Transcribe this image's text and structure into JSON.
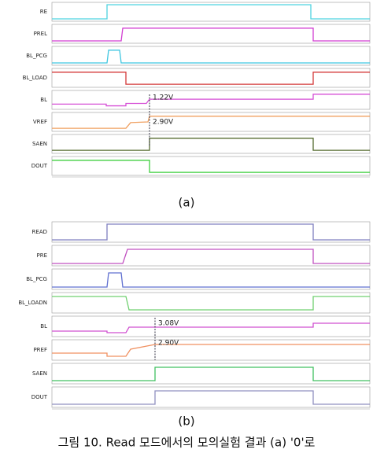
{
  "figure": {
    "panels": [
      {
        "label": "(a)",
        "signals": [
          "RE",
          "PREL",
          "BL_PCG",
          "BL_LOAD",
          "BL",
          "VREF",
          "SAEN",
          "DOUT"
        ],
        "annotations": [
          "1.22V",
          "2.90V"
        ]
      },
      {
        "label": "(b)",
        "signals": [
          "READ",
          "PRE",
          "BL_PCG",
          "BL_LOADN",
          "BL",
          "PREF",
          "SAEN",
          "DOUT"
        ],
        "annotations": [
          "3.08V",
          "2.90V"
        ]
      }
    ],
    "caption": "그림 10. Read 모드에서의 모의실험 결과 (a) '0'로"
  }
}
